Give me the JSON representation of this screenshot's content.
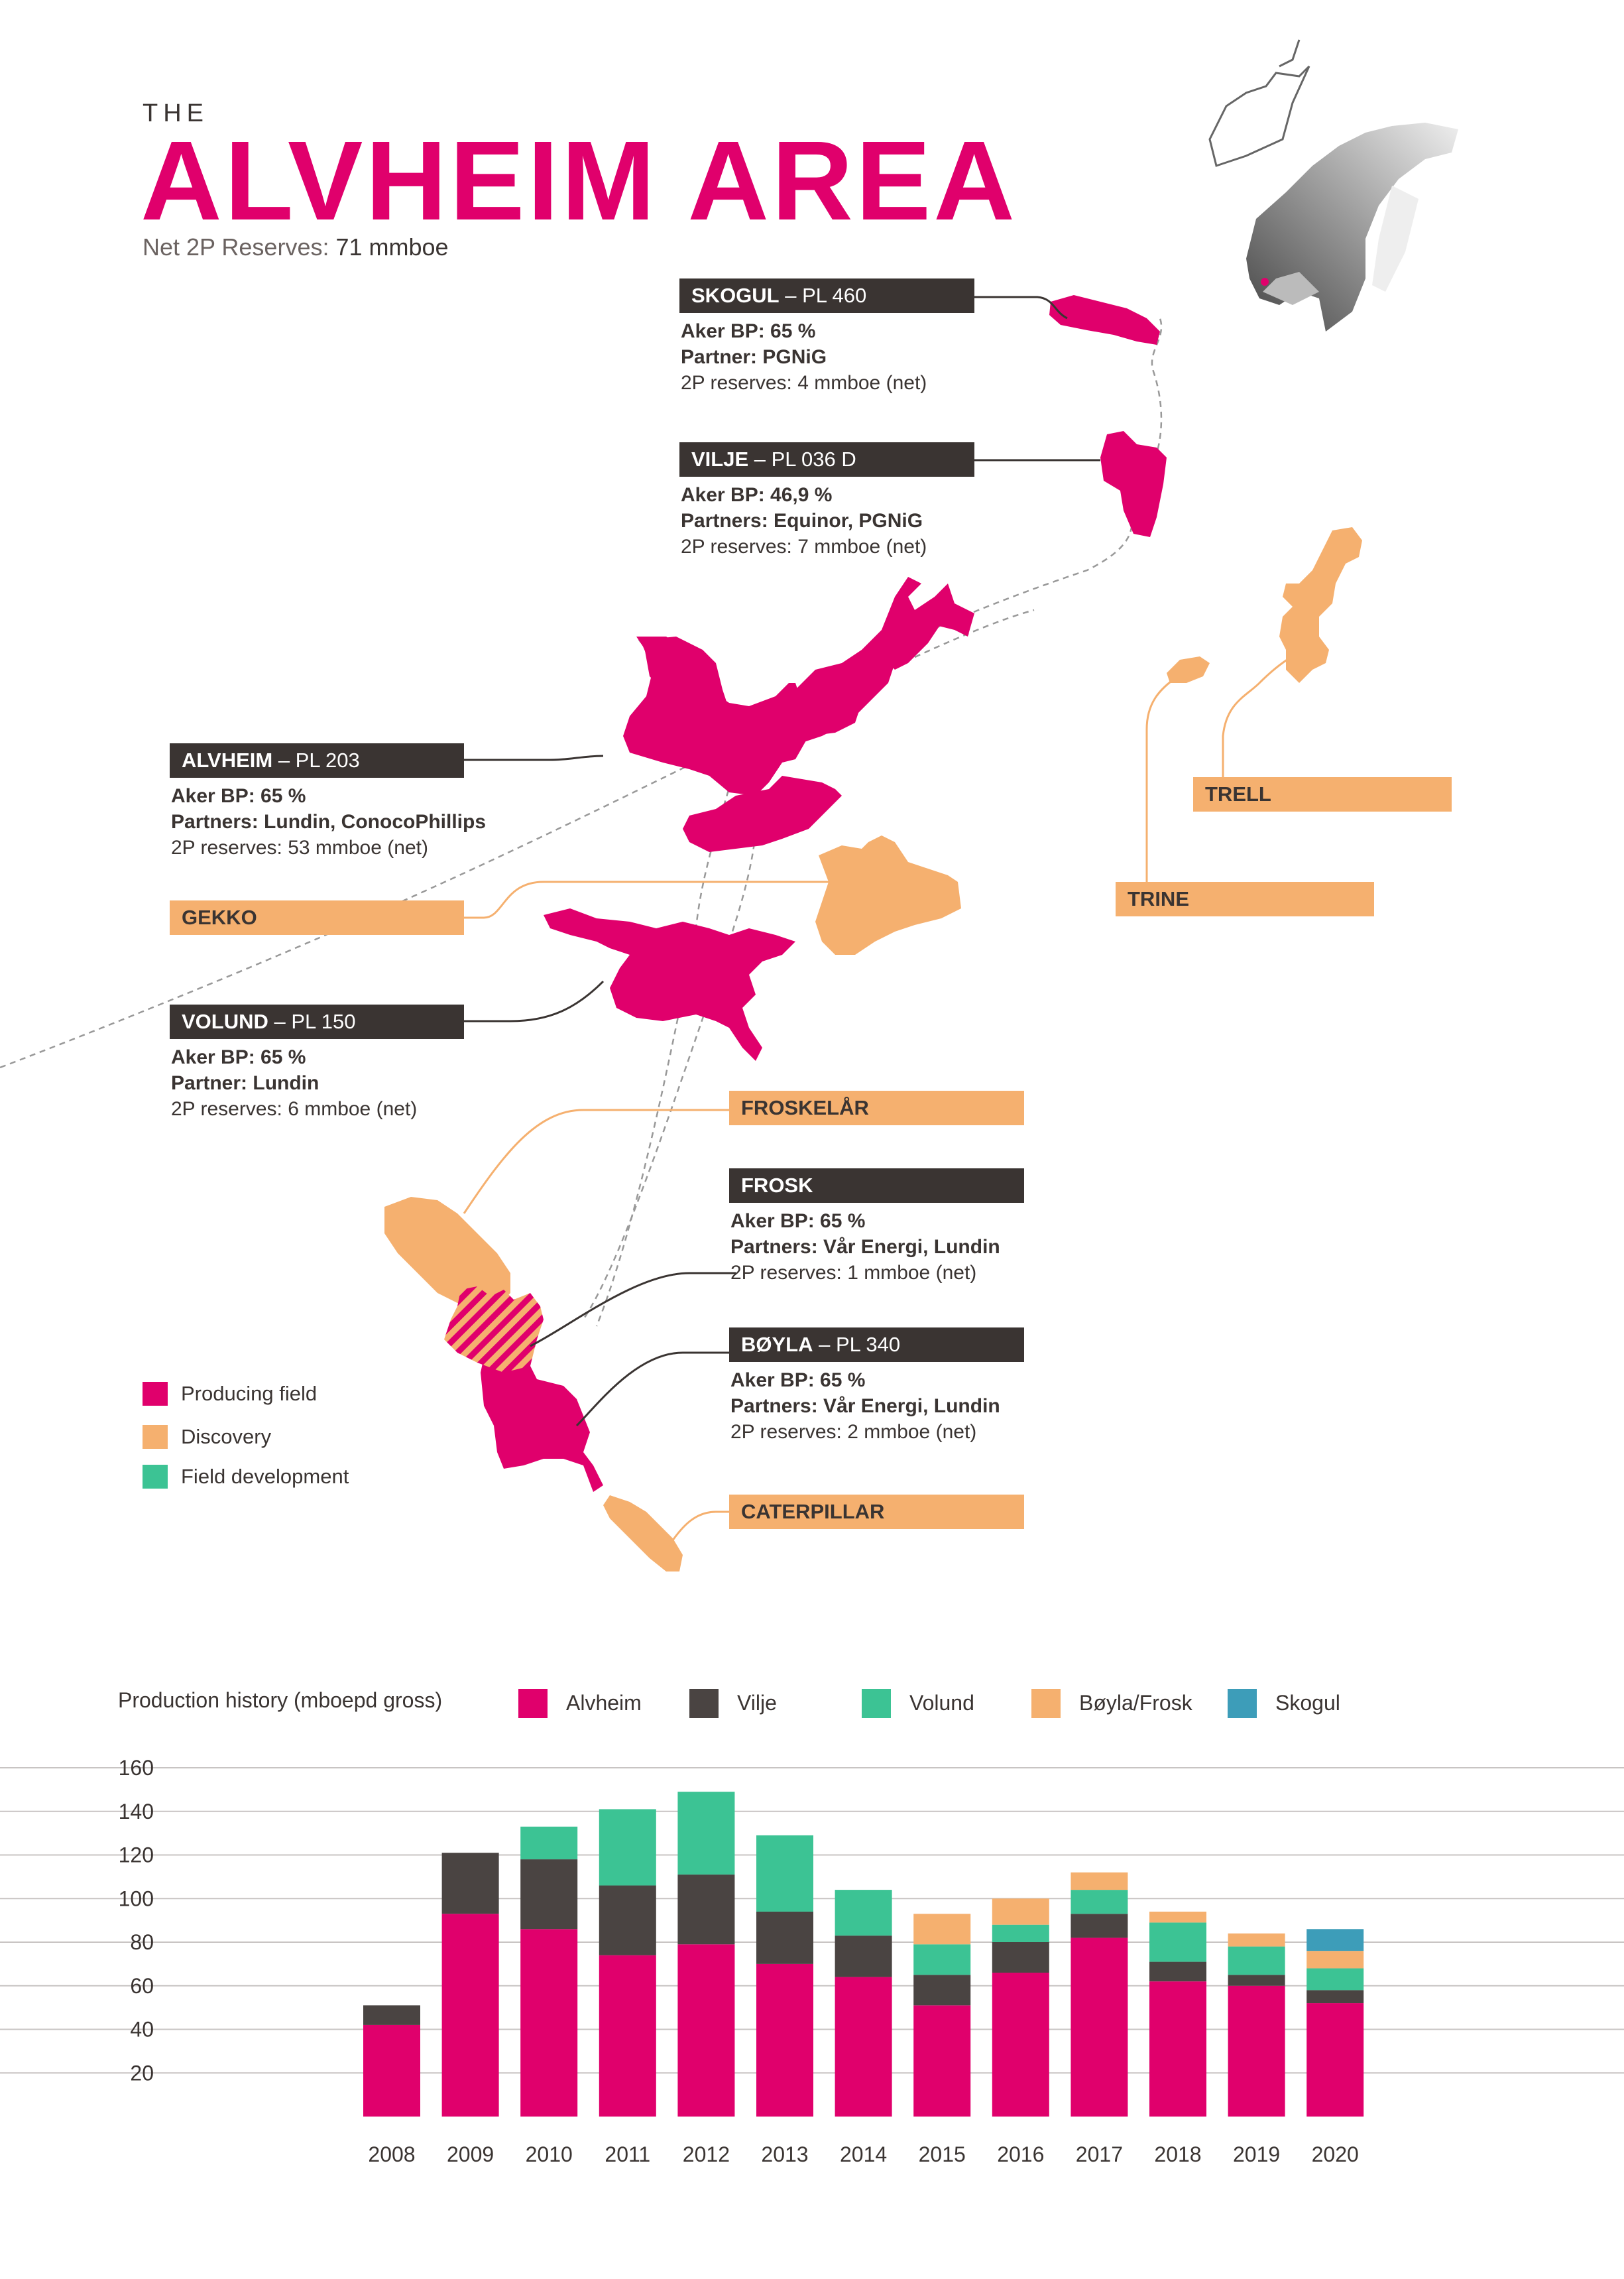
{
  "title": {
    "the": "THE",
    "main": "ALVHEIM AREA",
    "subtitle_label": "Net 2P Reserves:",
    "subtitle_value": "71 mmboe"
  },
  "fields": {
    "skogul": {
      "name": "SKOGUL",
      "licence": " – PL 460",
      "line1": "Aker BP: 65  %",
      "line2": "Partner: PGNiG",
      "line3": "2P reserves: 4 mmboe (net)"
    },
    "vilje": {
      "name": "VILJE",
      "licence": " – PL 036 D",
      "line1": "Aker BP: 46,9 %",
      "line2": "Partners: Equinor, PGNiG",
      "line3": "2P reserves: 7 mmboe (net)"
    },
    "alvheim": {
      "name": "ALVHEIM",
      "licence": " – PL 203",
      "line1": "Aker BP: 65 %",
      "line2": "Partners: Lundin, ConocoPhillips",
      "line3": "2P reserves: 53 mmboe (net)"
    },
    "volund": {
      "name": "VOLUND",
      "licence": " – PL 150",
      "line1": "Aker BP: 65  %",
      "line2": "Partner: Lundin",
      "line3": "2P reserves: 6 mmboe (net)"
    },
    "frosk": {
      "name": "FROSK",
      "licence": "",
      "line1": "Aker BP: 65 %",
      "line2": "Partners:  Vår Energi, Lundin",
      "line3": "2P reserves: 1 mmboe (net)"
    },
    "boyla": {
      "name": "BØYLA",
      "licence": " – PL 340",
      "line1": "Aker BP: 65 %",
      "line2": "Partners: Vår Energi, Lundin",
      "line3": "2P reserves: 2 mmboe (net)"
    }
  },
  "discoveries": {
    "gekko": "GEKKO",
    "trell": "TRELL",
    "trine": "TRINE",
    "froskelar": "FROSKELÅR",
    "caterpillar": "CATERPILLAR"
  },
  "legend": {
    "producing": "Producing field",
    "discovery": "Discovery",
    "development": "Field development"
  },
  "colors": {
    "producing": "#e0006c",
    "discovery": "#f5b06f",
    "development": "#3cc394",
    "dark": "#3a3432",
    "skogul": "#3d9db9"
  },
  "chart_data": {
    "type": "bar",
    "title": "Production history (mboepd gross)",
    "stacked": true,
    "ylim": [
      0,
      160
    ],
    "yticks": [
      20,
      40,
      60,
      80,
      100,
      120,
      140,
      160
    ],
    "categories": [
      "2008",
      "2009",
      "2010",
      "2011",
      "2012",
      "2013",
      "2014",
      "2015",
      "2016",
      "2017",
      "2018",
      "2019",
      "2020"
    ],
    "series": [
      {
        "name": "Alvheim",
        "color": "#e0006c",
        "values": [
          42,
          93,
          86,
          74,
          79,
          70,
          64,
          51,
          66,
          82,
          62,
          60,
          52
        ]
      },
      {
        "name": "Vilje",
        "color": "#4a4442",
        "values": [
          9,
          28,
          32,
          32,
          32,
          24,
          19,
          14,
          14,
          11,
          9,
          5,
          6
        ]
      },
      {
        "name": "Volund",
        "color": "#3cc394",
        "values": [
          0,
          0,
          15,
          35,
          38,
          35,
          21,
          14,
          8,
          11,
          18,
          13,
          10
        ]
      },
      {
        "name": "Bøyla/Frosk",
        "color": "#f5b06f",
        "values": [
          0,
          0,
          0,
          0,
          0,
          0,
          0,
          14,
          12,
          8,
          5,
          6,
          8
        ]
      },
      {
        "name": "Skogul",
        "color": "#3d9db9",
        "values": [
          0,
          0,
          0,
          0,
          0,
          0,
          0,
          0,
          0,
          0,
          0,
          0,
          10
        ]
      }
    ]
  }
}
